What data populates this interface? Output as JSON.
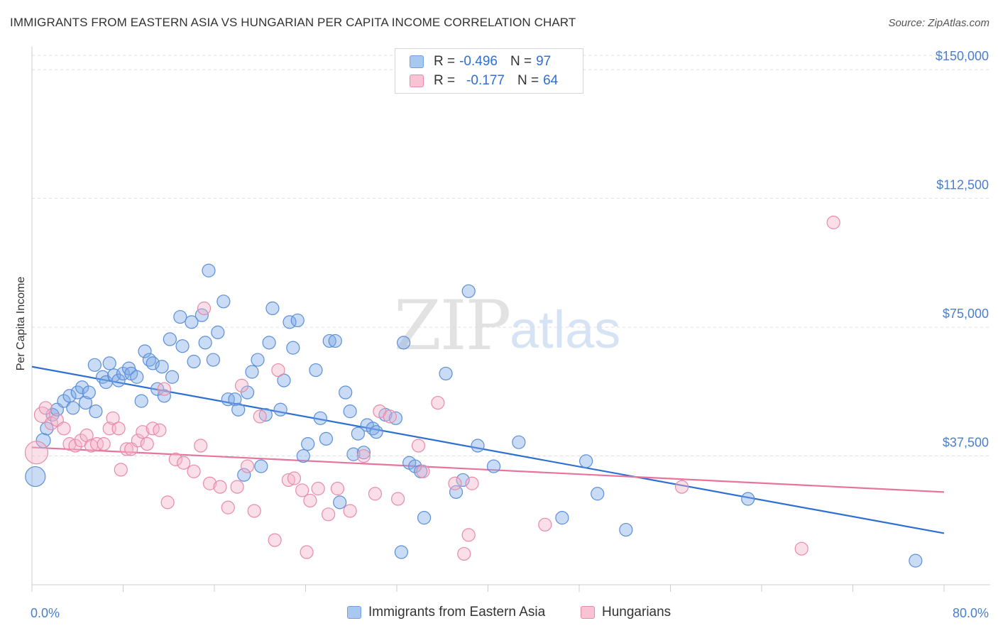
{
  "title": "IMMIGRANTS FROM EASTERN ASIA VS HUNGARIAN PER CAPITA INCOME CORRELATION CHART",
  "source": "Source: ZipAtlas.com",
  "watermark": {
    "zip": "ZIP",
    "atlas": "atlas"
  },
  "legend": {
    "rows": [
      {
        "r_label": "R =",
        "r_value": "-0.496",
        "n_label": "N =",
        "n_value": "97",
        "color": "#a9c8f0",
        "border": "#6f9fdc"
      },
      {
        "r_label": "R =",
        "r_value": "-0.177",
        "n_label": "N =",
        "n_value": "64",
        "color": "#f8c3d3",
        "border": "#e88aa8"
      }
    ]
  },
  "chart_data": {
    "type": "scatter",
    "xlabel": "",
    "ylabel": "Per Capita Income",
    "xlim": [
      0,
      80
    ],
    "ylim": [
      0,
      155000
    ],
    "x_tick_labels": [
      "0.0%",
      "80.0%"
    ],
    "y_ticks": [
      {
        "value": 37500,
        "label": "$37,500"
      },
      {
        "value": 75000,
        "label": "$75,000"
      },
      {
        "value": 112500,
        "label": "$112,500"
      },
      {
        "value": 150000,
        "label": "$150,000"
      }
    ],
    "grid": "horizontal dashed",
    "legend_position": "top-center",
    "series": [
      {
        "name": "Immigrants from Eastern Asia",
        "color": "#7eaae6",
        "edge": "#5b8fd8",
        "line_color": "#2e6fd2",
        "trend": [
          [
            0,
            63500
          ],
          [
            80,
            15000
          ]
        ],
        "points": [
          [
            0.3,
            31500,
            14
          ],
          [
            1.0,
            42000,
            10
          ],
          [
            1.3,
            45500,
            9
          ],
          [
            1.8,
            49500,
            9
          ],
          [
            2.2,
            51000,
            9
          ],
          [
            2.8,
            53500,
            9
          ],
          [
            3.3,
            55000,
            9
          ],
          [
            3.6,
            51500,
            9
          ],
          [
            4.0,
            56000,
            9
          ],
          [
            4.4,
            57500,
            9
          ],
          [
            4.7,
            53000,
            9
          ],
          [
            5.0,
            56000,
            9
          ],
          [
            5.5,
            64000,
            9
          ],
          [
            5.6,
            50500,
            9
          ],
          [
            6.2,
            60500,
            9
          ],
          [
            6.5,
            59000,
            9
          ],
          [
            6.8,
            64500,
            9
          ],
          [
            7.2,
            61000,
            9
          ],
          [
            7.6,
            59500,
            9
          ],
          [
            8.0,
            61500,
            9
          ],
          [
            8.5,
            63000,
            9
          ],
          [
            8.7,
            61500,
            9
          ],
          [
            9.2,
            60500,
            9
          ],
          [
            9.6,
            53500,
            9
          ],
          [
            9.9,
            68000,
            9
          ],
          [
            10.3,
            65500,
            9
          ],
          [
            10.6,
            64500,
            9
          ],
          [
            11.0,
            57000,
            9
          ],
          [
            11.4,
            63500,
            9
          ],
          [
            11.6,
            55000,
            9
          ],
          [
            12.1,
            71500,
            9
          ],
          [
            12.3,
            60500,
            9
          ],
          [
            13.0,
            78000,
            9
          ],
          [
            13.2,
            69500,
            9
          ],
          [
            14.0,
            76500,
            9
          ],
          [
            14.2,
            65000,
            9
          ],
          [
            14.9,
            78500,
            9
          ],
          [
            15.2,
            70500,
            9
          ],
          [
            15.5,
            91500,
            9
          ],
          [
            15.9,
            65500,
            9
          ],
          [
            16.3,
            73500,
            9
          ],
          [
            16.8,
            82500,
            9
          ],
          [
            17.2,
            54000,
            9
          ],
          [
            17.8,
            54000,
            9
          ],
          [
            18.1,
            51000,
            9
          ],
          [
            18.6,
            32000,
            9
          ],
          [
            18.9,
            56000,
            9
          ],
          [
            19.3,
            62000,
            9
          ],
          [
            19.8,
            65500,
            9
          ],
          [
            20.1,
            34500,
            9
          ],
          [
            20.5,
            49500,
            9
          ],
          [
            20.8,
            70500,
            9
          ],
          [
            21.1,
            80500,
            9
          ],
          [
            21.8,
            51000,
            9
          ],
          [
            22.1,
            59500,
            9
          ],
          [
            22.6,
            76500,
            9
          ],
          [
            22.9,
            69000,
            9
          ],
          [
            23.3,
            77000,
            9
          ],
          [
            23.8,
            37500,
            9
          ],
          [
            24.2,
            41000,
            9
          ],
          [
            24.9,
            62500,
            9
          ],
          [
            25.3,
            48500,
            9
          ],
          [
            25.8,
            42500,
            9
          ],
          [
            26.1,
            71000,
            9
          ],
          [
            26.6,
            71000,
            9
          ],
          [
            27.0,
            24000,
            9
          ],
          [
            27.5,
            56000,
            9
          ],
          [
            27.9,
            50500,
            9
          ],
          [
            28.2,
            38000,
            9
          ],
          [
            28.6,
            44000,
            9
          ],
          [
            29.1,
            38500,
            9
          ],
          [
            29.4,
            46500,
            9
          ],
          [
            29.9,
            45500,
            9
          ],
          [
            30.2,
            44500,
            9
          ],
          [
            31.0,
            49500,
            9
          ],
          [
            31.9,
            48500,
            9
          ],
          [
            32.4,
            9500,
            9
          ],
          [
            32.6,
            70500,
            9
          ],
          [
            33.1,
            35500,
            9
          ],
          [
            33.6,
            34500,
            9
          ],
          [
            34.1,
            33000,
            9
          ],
          [
            34.4,
            19500,
            9
          ],
          [
            36.3,
            61500,
            9
          ],
          [
            37.2,
            27000,
            9
          ],
          [
            37.8,
            30500,
            9
          ],
          [
            38.3,
            85500,
            9
          ],
          [
            39.1,
            40500,
            9
          ],
          [
            40.5,
            34500,
            9
          ],
          [
            42.7,
            41500,
            9
          ],
          [
            46.5,
            19500,
            9
          ],
          [
            48.6,
            36000,
            9
          ],
          [
            49.6,
            26500,
            9
          ],
          [
            52.1,
            16000,
            9
          ],
          [
            62.8,
            25000,
            9
          ],
          [
            77.5,
            7000,
            9
          ]
        ]
      },
      {
        "name": "Hungarians",
        "color": "#f5b3c8",
        "edge": "#e88aa8",
        "line_color": "#e8739b",
        "trend": [
          [
            0,
            40000
          ],
          [
            80,
            27000
          ]
        ],
        "points": [
          [
            0.4,
            38500,
            16
          ],
          [
            0.9,
            49500,
            11
          ],
          [
            1.2,
            51500,
            9
          ],
          [
            1.7,
            47000,
            9
          ],
          [
            2.2,
            48000,
            9
          ],
          [
            2.8,
            45500,
            9
          ],
          [
            3.3,
            41000,
            9
          ],
          [
            3.8,
            40500,
            9
          ],
          [
            4.3,
            42000,
            9
          ],
          [
            4.8,
            43500,
            9
          ],
          [
            5.2,
            40500,
            9
          ],
          [
            5.7,
            41000,
            9
          ],
          [
            6.3,
            41000,
            9
          ],
          [
            6.8,
            45500,
            9
          ],
          [
            7.1,
            48500,
            9
          ],
          [
            7.6,
            45500,
            9
          ],
          [
            7.8,
            33500,
            9
          ],
          [
            8.3,
            39500,
            9
          ],
          [
            8.7,
            39500,
            9
          ],
          [
            9.3,
            42000,
            9
          ],
          [
            9.7,
            44500,
            9
          ],
          [
            10.1,
            41000,
            9
          ],
          [
            10.6,
            45500,
            9
          ],
          [
            11.2,
            45000,
            9
          ],
          [
            11.6,
            57000,
            9
          ],
          [
            11.9,
            24000,
            9
          ],
          [
            12.6,
            36500,
            9
          ],
          [
            13.3,
            35500,
            9
          ],
          [
            14.2,
            33000,
            9
          ],
          [
            14.8,
            40500,
            9
          ],
          [
            15.1,
            80500,
            9
          ],
          [
            15.6,
            29500,
            9
          ],
          [
            16.5,
            28500,
            9
          ],
          [
            17.2,
            22500,
            9
          ],
          [
            18.0,
            28500,
            9
          ],
          [
            18.4,
            58000,
            9
          ],
          [
            18.9,
            34500,
            9
          ],
          [
            19.5,
            21500,
            9
          ],
          [
            20.0,
            49000,
            9
          ],
          [
            21.3,
            13000,
            9
          ],
          [
            21.6,
            62500,
            9
          ],
          [
            22.5,
            30500,
            9
          ],
          [
            23.0,
            31000,
            9
          ],
          [
            23.7,
            27500,
            9
          ],
          [
            24.1,
            9500,
            9
          ],
          [
            24.4,
            24500,
            9
          ],
          [
            25.1,
            28000,
            9
          ],
          [
            26.0,
            20500,
            9
          ],
          [
            26.8,
            28000,
            9
          ],
          [
            27.9,
            21500,
            9
          ],
          [
            29.1,
            37500,
            9
          ],
          [
            30.1,
            26500,
            9
          ],
          [
            30.5,
            50500,
            9
          ],
          [
            31.4,
            49000,
            9
          ],
          [
            32.1,
            25000,
            9
          ],
          [
            33.9,
            40500,
            9
          ],
          [
            34.3,
            33000,
            9
          ],
          [
            35.6,
            53000,
            9
          ],
          [
            37.1,
            29500,
            9
          ],
          [
            37.9,
            9000,
            9
          ],
          [
            38.3,
            14500,
            9
          ],
          [
            38.6,
            29500,
            9
          ],
          [
            45.0,
            17500,
            9
          ],
          [
            57.0,
            28500,
            9
          ],
          [
            67.5,
            10500,
            9
          ],
          [
            70.3,
            105500,
            9
          ]
        ]
      }
    ]
  }
}
